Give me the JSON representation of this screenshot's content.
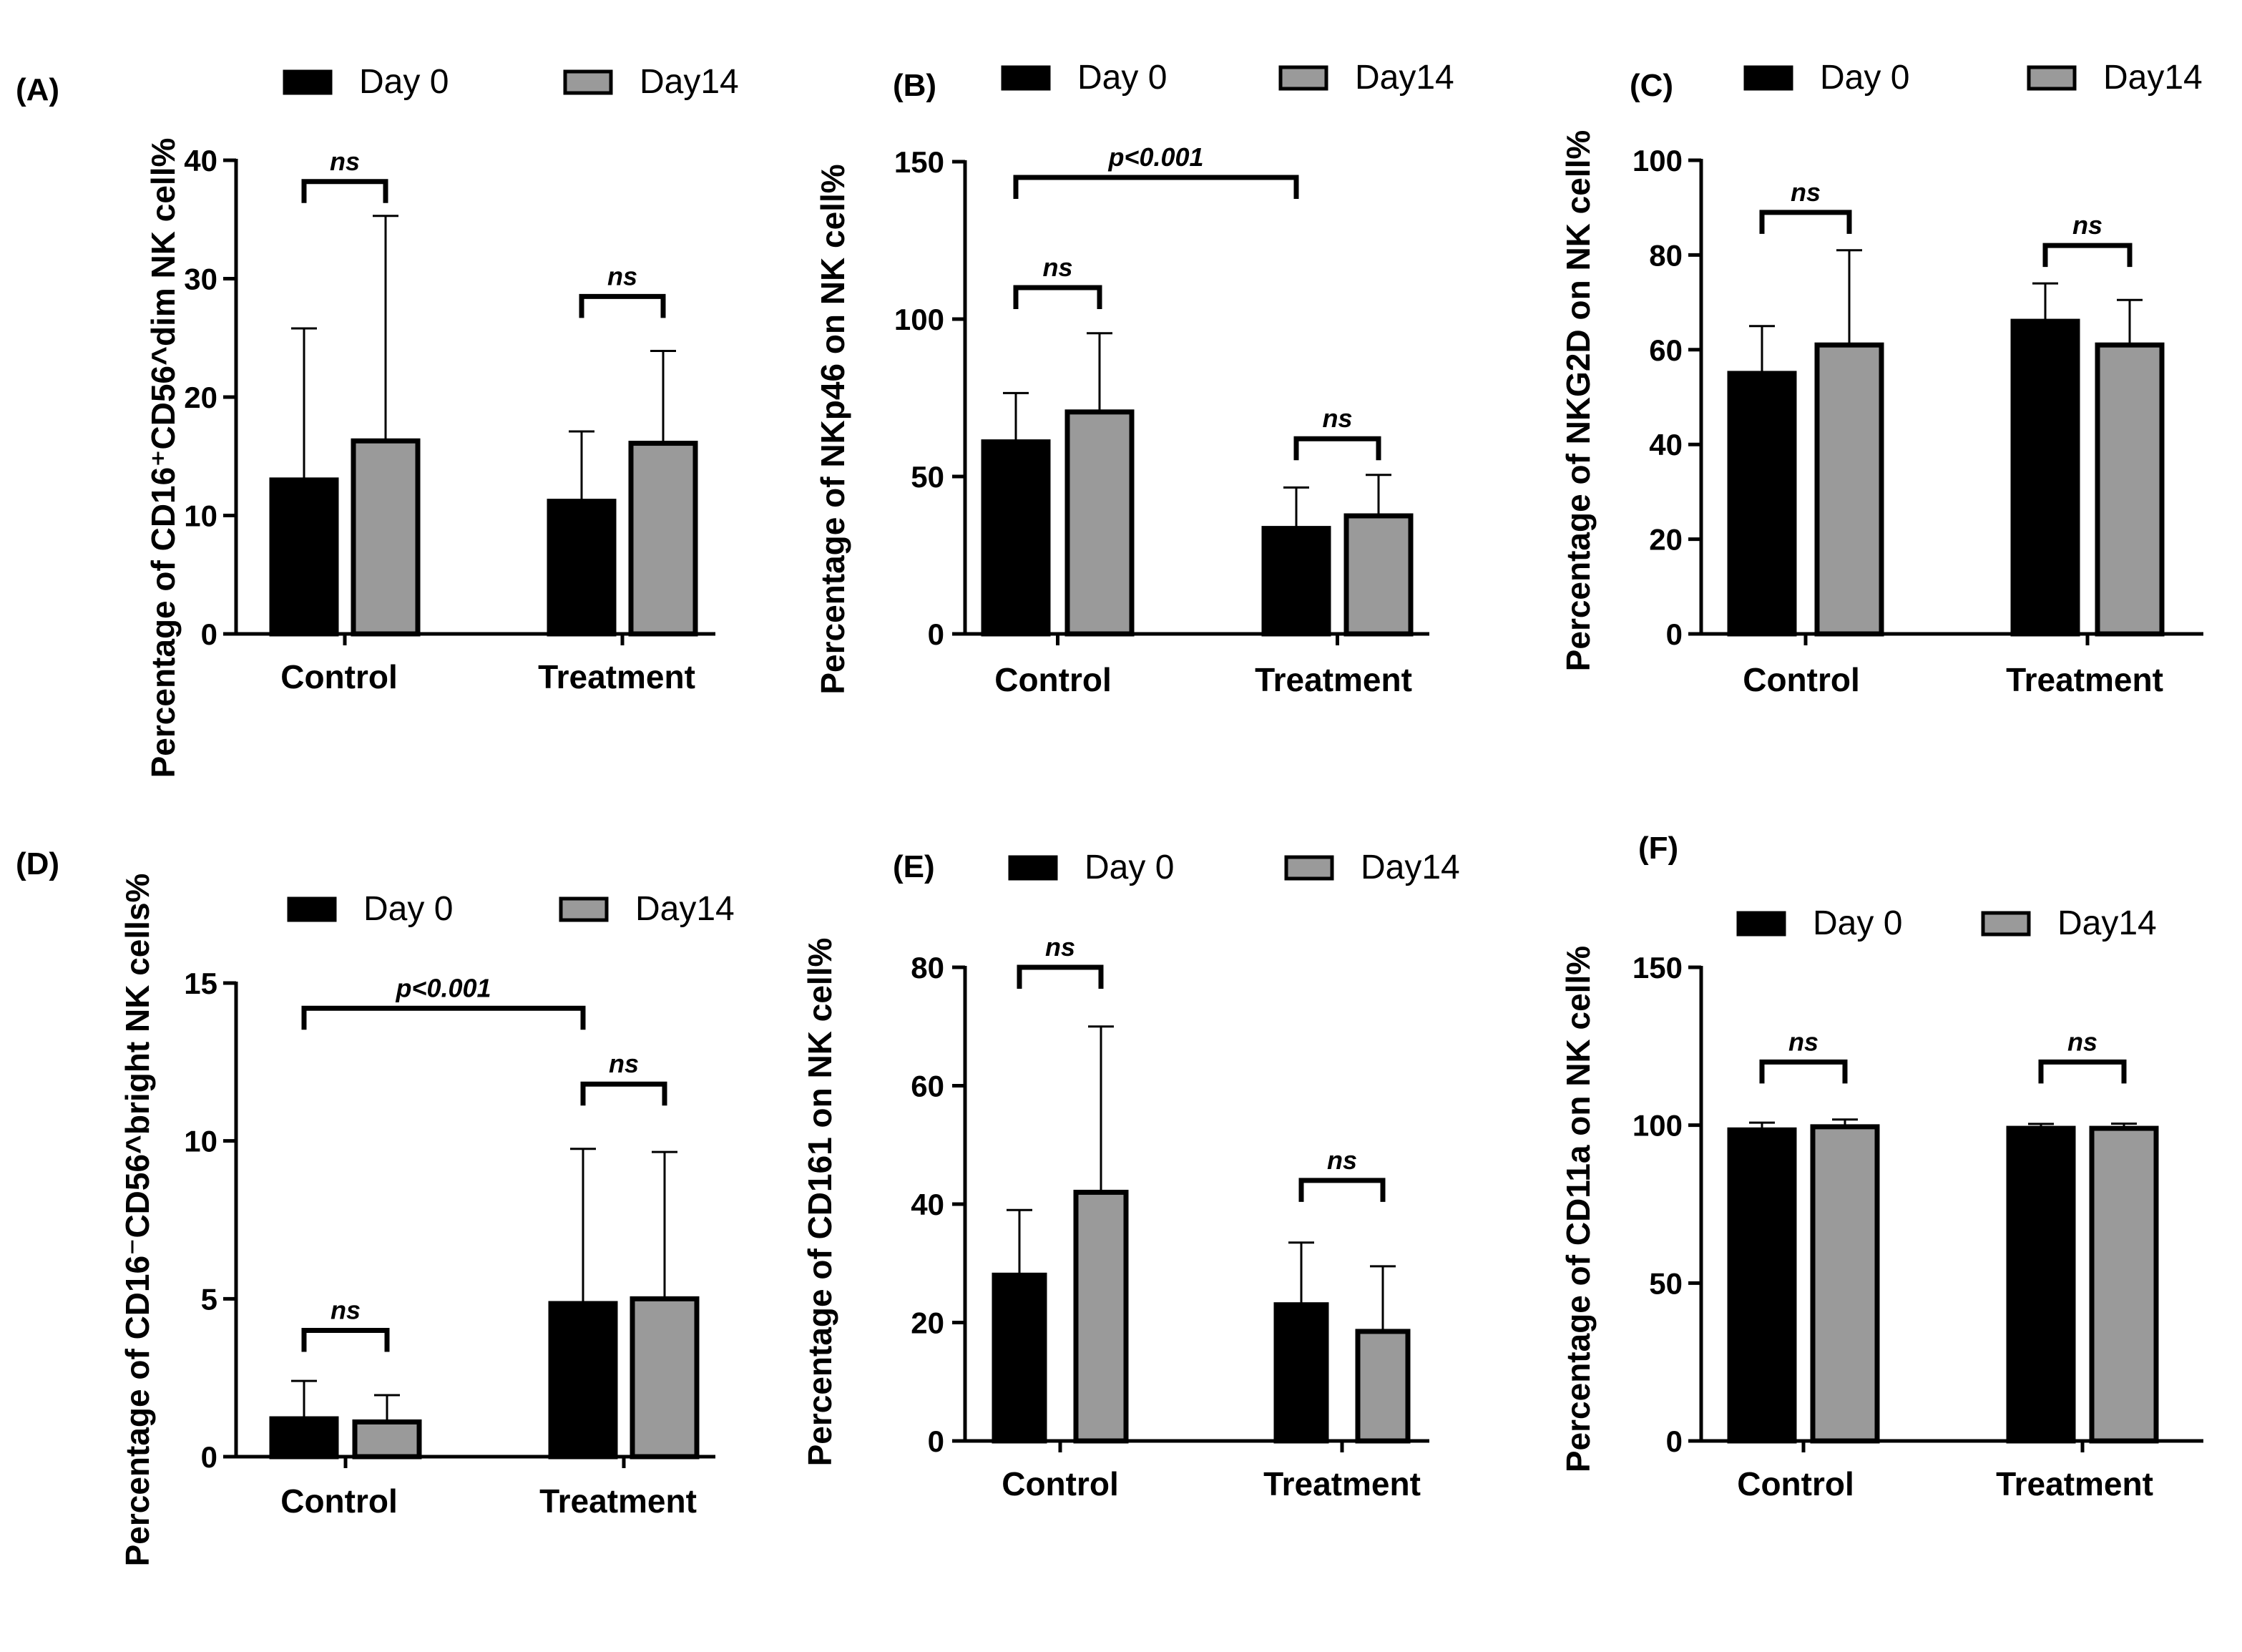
{
  "colors": {
    "day0": "#000000",
    "day14": "#9a9a9a",
    "axis": "#000000"
  },
  "chart_data": [
    {
      "panel": "(A)",
      "type": "bar",
      "ylabel": "Percentage of CD16⁺CD56^dim NK cell%",
      "categories": [
        "Control",
        "Treatment"
      ],
      "ylim": [
        0,
        40
      ],
      "yticks": [
        0,
        10,
        20,
        30,
        40
      ],
      "legend": [
        "Day 0",
        "Day14"
      ],
      "series": [
        {
          "name": "Day 0",
          "values": [
            13,
            11.2
          ],
          "err_upper": [
            25.8,
            17.1
          ]
        },
        {
          "name": "Day14",
          "values": [
            16.3,
            16.1
          ],
          "err_upper": [
            35.3,
            23.9
          ]
        }
      ],
      "annotations": [
        {
          "type": "within",
          "group": 0,
          "label": "ns",
          "y": 38.2
        },
        {
          "type": "within",
          "group": 1,
          "label": "ns",
          "y": 28.5
        }
      ]
    },
    {
      "panel": "(B)",
      "type": "bar",
      "ylabel": "Percentage of NKp46 on NK cell%",
      "categories": [
        "Control",
        "Treatment"
      ],
      "ylim": [
        0,
        150
      ],
      "yticks": [
        0,
        50,
        100,
        150
      ],
      "legend": [
        "Day 0",
        "Day14"
      ],
      "series": [
        {
          "name": "Day 0",
          "values": [
            61,
            33.5
          ],
          "err_upper": [
            76.5,
            46.5
          ]
        },
        {
          "name": "Day14",
          "values": [
            70.5,
            37.5
          ],
          "err_upper": [
            95.5,
            50.5
          ]
        }
      ],
      "annotations": [
        {
          "type": "within",
          "group": 0,
          "label": "ns",
          "y": 110
        },
        {
          "type": "within",
          "group": 1,
          "label": "ns",
          "y": 62
        },
        {
          "type": "between",
          "from": [
            0,
            0
          ],
          "to": [
            1,
            0
          ],
          "label": "p<0.001",
          "y": 145
        }
      ]
    },
    {
      "panel": "(C)",
      "type": "bar",
      "ylabel": "Percentage of NKG2D on NK cell%",
      "categories": [
        "Control",
        "Treatment"
      ],
      "ylim": [
        0,
        100
      ],
      "yticks": [
        0,
        20,
        40,
        60,
        80,
        100
      ],
      "legend": [
        "Day 0",
        "Day14"
      ],
      "series": [
        {
          "name": "Day 0",
          "values": [
            55,
            66
          ],
          "err_upper": [
            65,
            74
          ]
        },
        {
          "name": "Day14",
          "values": [
            61,
            61
          ],
          "err_upper": [
            81,
            70.5
          ]
        }
      ],
      "annotations": [
        {
          "type": "within",
          "group": 0,
          "label": "ns",
          "y": 89
        },
        {
          "type": "within",
          "group": 1,
          "label": "ns",
          "y": 82
        }
      ]
    },
    {
      "panel": "(D)",
      "type": "bar",
      "ylabel": "Percentage of CD16⁻CD56^bright NK cells%",
      "categories": [
        "Control",
        "Treatment"
      ],
      "ylim": [
        0,
        15
      ],
      "yticks": [
        0,
        5,
        10,
        15
      ],
      "legend": [
        "Day 0",
        "Day14"
      ],
      "series": [
        {
          "name": "Day 0",
          "values": [
            1.2,
            4.85
          ],
          "err_upper": [
            2.4,
            9.75
          ]
        },
        {
          "name": "Day14",
          "values": [
            1.1,
            5
          ],
          "err_upper": [
            1.95,
            9.65
          ]
        }
      ],
      "annotations": [
        {
          "type": "within",
          "group": 0,
          "label": "ns",
          "y": 4
        },
        {
          "type": "within",
          "group": 1,
          "label": "ns",
          "y": 11.8
        },
        {
          "type": "between",
          "from": [
            0,
            0
          ],
          "to": [
            1,
            0
          ],
          "label": "p<0.001",
          "y": 14.2
        }
      ]
    },
    {
      "panel": "(E)",
      "type": "bar",
      "ylabel": "Percentage of CD161 on NK cell%",
      "categories": [
        "Control",
        "Treatment"
      ],
      "ylim": [
        0,
        80
      ],
      "yticks": [
        0,
        20,
        40,
        60,
        80
      ],
      "legend": [
        "Day 0",
        "Day14"
      ],
      "series": [
        {
          "name": "Day 0",
          "values": [
            28,
            23
          ],
          "err_upper": [
            39,
            33.5
          ]
        },
        {
          "name": "Day14",
          "values": [
            42,
            18.5
          ],
          "err_upper": [
            70,
            29.5
          ]
        }
      ],
      "annotations": [
        {
          "type": "within",
          "group": 0,
          "label": "ns",
          "y": 80
        },
        {
          "type": "within",
          "group": 1,
          "label": "ns",
          "y": 44
        }
      ]
    },
    {
      "panel": "(F)",
      "type": "bar",
      "ylabel": "Percentage of  CD11a on NK cell%",
      "categories": [
        "Control",
        "Treatment"
      ],
      "ylim": [
        0,
        150
      ],
      "yticks": [
        0,
        50,
        100,
        150
      ],
      "legend": [
        "Day 0",
        "Day14"
      ],
      "series": [
        {
          "name": "Day 0",
          "values": [
            98.5,
            99
          ],
          "err_upper": [
            100.8,
            100.4
          ]
        },
        {
          "name": "Day14",
          "values": [
            99.5,
            99
          ],
          "err_upper": [
            101.8,
            100.5
          ]
        }
      ],
      "annotations": [
        {
          "type": "within",
          "group": 0,
          "label": "ns",
          "y": 120
        },
        {
          "type": "within",
          "group": 1,
          "label": "ns",
          "y": 120
        }
      ]
    }
  ]
}
